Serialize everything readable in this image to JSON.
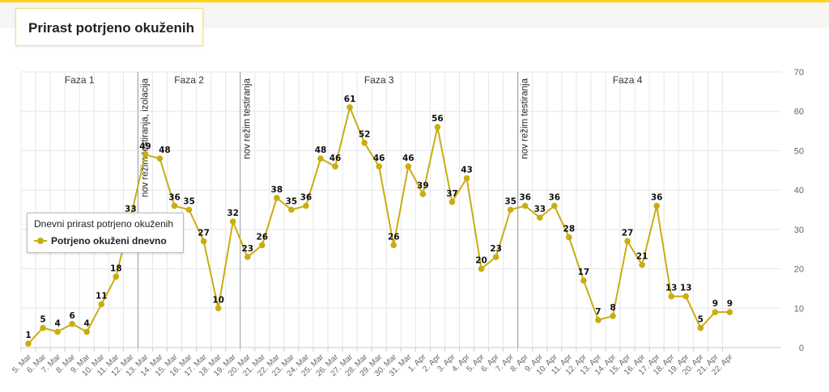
{
  "header": {
    "title": "Prirast potrjeno okuženih"
  },
  "colors": {
    "accent": "#ffd21e",
    "series": "#c9ad12",
    "grid": "#e6e6e6",
    "marker_line": "#999999"
  },
  "legend": {
    "title": "Dnevni prirast potrjeno okuženih",
    "items": [
      {
        "label": "Potrjeno okuženi dnevno"
      }
    ],
    "placement": "left-middle"
  },
  "chart_data": {
    "type": "line",
    "title": "",
    "xlabel": "",
    "ylabel": "",
    "ylim": [
      0,
      70
    ],
    "yticks": [
      0,
      10,
      20,
      30,
      40,
      50,
      60,
      70
    ],
    "y_axis_position": "right",
    "grid": true,
    "categories": [
      "5. Mar",
      "6. Mar",
      "7. Mar",
      "8. Mar",
      "9. Mar",
      "10. Mar",
      "11. Mar",
      "12. Mar",
      "13. Mar",
      "14. Mar",
      "15. Mar",
      "16. Mar",
      "17. Mar",
      "18. Mar",
      "19. Mar",
      "20. Mar",
      "21. Mar",
      "22. Mar",
      "23. Mar",
      "24. Mar",
      "25. Mar",
      "26. Mar",
      "27. Mar",
      "28. Mar",
      "29. Mar",
      "30. Mar",
      "31. Mar",
      "1. Apr",
      "2. Apr",
      "3. Apr",
      "4. Apr",
      "5. Apr",
      "6. Apr",
      "7. Apr",
      "8. Apr",
      "9. Apr",
      "10. Apr",
      "11. Apr",
      "12. Apr",
      "13. Apr",
      "14. Apr",
      "15. Apr",
      "16. Apr",
      "17. Apr",
      "18. Apr",
      "19. Apr",
      "20. Apr",
      "21. Apr",
      "22. Apr"
    ],
    "series": [
      {
        "name": "Potrjeno okuženi dnevno",
        "values": [
          1,
          5,
          4,
          6,
          4,
          11,
          18,
          33,
          49,
          48,
          36,
          35,
          27,
          10,
          32,
          23,
          26,
          38,
          35,
          36,
          48,
          46,
          61,
          52,
          46,
          26,
          46,
          39,
          56,
          37,
          43,
          20,
          23,
          35,
          36,
          33,
          36,
          28,
          17,
          7,
          8,
          27,
          21,
          36,
          13,
          13,
          5,
          9,
          9
        ]
      }
    ],
    "point_label_offsets": [
      0,
      0,
      0,
      0,
      0,
      0,
      0,
      0,
      0,
      1,
      0,
      0,
      0,
      0,
      0,
      0,
      0,
      0,
      0,
      0,
      0,
      0,
      0,
      0,
      0,
      0,
      0,
      0,
      0,
      0,
      0,
      0,
      0,
      0,
      0,
      0,
      0,
      0,
      0,
      0,
      0,
      0,
      0,
      0,
      0,
      0,
      0,
      0,
      0
    ],
    "phases": [
      {
        "label": "Faza 1",
        "from": "5. Mar",
        "to": "12. Mar"
      },
      {
        "label": "Faza 2",
        "from": "13. Mar",
        "to": "19. Mar"
      },
      {
        "label": "Faza 3",
        "from": "20. Mar",
        "to": "7. Apr"
      },
      {
        "label": "Faza 4",
        "from": "8. Apr",
        "to": "22. Apr"
      }
    ],
    "marker_lines": [
      {
        "after": "12. Mar",
        "label": "nov režim testiranja, izolacija"
      },
      {
        "after": "19. Mar",
        "label": "nov režim testiranja"
      },
      {
        "after": "7. Apr",
        "label": "nov režim testiranja"
      }
    ]
  }
}
